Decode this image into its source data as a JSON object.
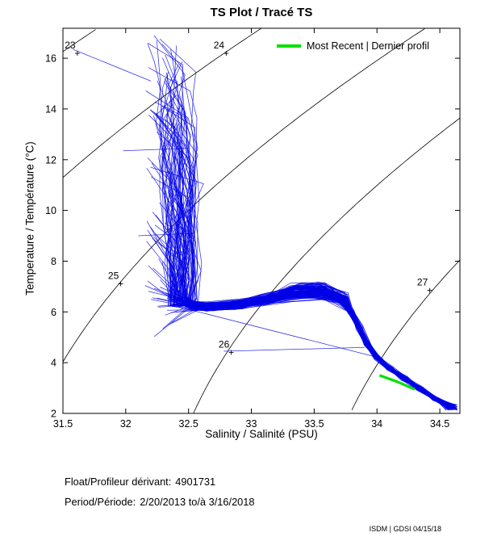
{
  "chart_data": {
    "type": "line",
    "title": "TS Plot / Tracé TS",
    "xlabel": "Salinity / Salinité (PSU)",
    "ylabel": "Temperature / Température (°C)",
    "xlim": [
      31.5,
      34.66
    ],
    "ylim": [
      2,
      17.18
    ],
    "grid": false,
    "xticks": {
      "values": [
        31.5,
        32,
        32.5,
        33,
        33.5,
        34,
        34.5
      ],
      "labels": [
        "31.5",
        "32",
        "32.5",
        "33",
        "33.5",
        "34",
        "34.5"
      ]
    },
    "yticks": {
      "values": [
        2,
        4,
        6,
        8,
        10,
        12,
        14,
        16
      ],
      "labels": [
        "2",
        "4",
        "6",
        "8",
        "10",
        "12",
        "14",
        "16"
      ]
    },
    "legend": {
      "label": "Most Recent | Dernier profil",
      "color": "#00e000",
      "position": "top-right"
    },
    "isopycnals": {
      "description": "sigma-t density contour lines labeled with + markers",
      "color": "#000000",
      "values": [
        23,
        24,
        25,
        26,
        27
      ],
      "labels": [
        {
          "value": "23",
          "S": 31.615,
          "T": 16.2
        },
        {
          "value": "24",
          "S": 32.8,
          "T": 16.2
        },
        {
          "value": "25",
          "S": 31.96,
          "T": 7.1
        },
        {
          "value": "26",
          "S": 32.84,
          "T": 4.4
        },
        {
          "value": "27",
          "S": 34.42,
          "T": 6.85
        }
      ]
    },
    "profiles": {
      "description": "Argo float temperature-salinity profiles (blue spaghetti), generated from spine + jitter",
      "color": "#0000e6",
      "count": 120,
      "seed": 7,
      "surface_temp_range": [
        4.8,
        16.9
      ],
      "surface_salinity_range": [
        32.15,
        32.45
      ],
      "deep_end": {
        "S_range": [
          34.55,
          34.64
        ],
        "T_range": [
          2.12,
          2.34
        ]
      },
      "spine_deep": [
        [
          34.46,
          2.6
        ],
        [
          34.34,
          2.98
        ],
        [
          34.22,
          3.38
        ],
        [
          34.1,
          3.78
        ],
        [
          34.0,
          4.2
        ],
        [
          33.92,
          4.75
        ],
        [
          33.86,
          5.4
        ],
        [
          33.79,
          6.0
        ]
      ],
      "spine_mid": [
        [
          33.72,
          6.55
        ],
        [
          33.55,
          6.85
        ],
        [
          33.35,
          6.8
        ],
        [
          33.1,
          6.5
        ],
        [
          32.88,
          6.3
        ],
        [
          32.68,
          6.2
        ],
        [
          32.55,
          6.25
        ]
      ],
      "column": {
        "S_start_range": [
          32.35,
          32.55
        ],
        "T_start_range": [
          6.2,
          6.6
        ]
      }
    },
    "stray_segments": [
      [
        [
          31.58,
          16.35
        ],
        [
          32.2,
          15.1
        ]
      ],
      [
        [
          31.98,
          12.35
        ],
        [
          32.5,
          12.45
        ]
      ],
      [
        [
          32.1,
          9.0
        ],
        [
          32.55,
          9.1
        ]
      ],
      [
        [
          32.78,
          4.45
        ],
        [
          33.9,
          4.6
        ]
      ],
      [
        [
          32.42,
          6.2
        ],
        [
          34.05,
          4.15
        ]
      ]
    ],
    "most_recent_profile": [
      [
        34.02,
        3.5
      ],
      [
        34.16,
        3.25
      ],
      [
        34.3,
        2.95
      ]
    ]
  },
  "footer": {
    "float_label": "Float/Profileur dérivant:",
    "float_value": "4901731",
    "period_label": "Period/Période:",
    "period_value": "2/20/2013 to/à 3/16/2018",
    "credit": "ISDM | GDSI  04/15/18"
  }
}
